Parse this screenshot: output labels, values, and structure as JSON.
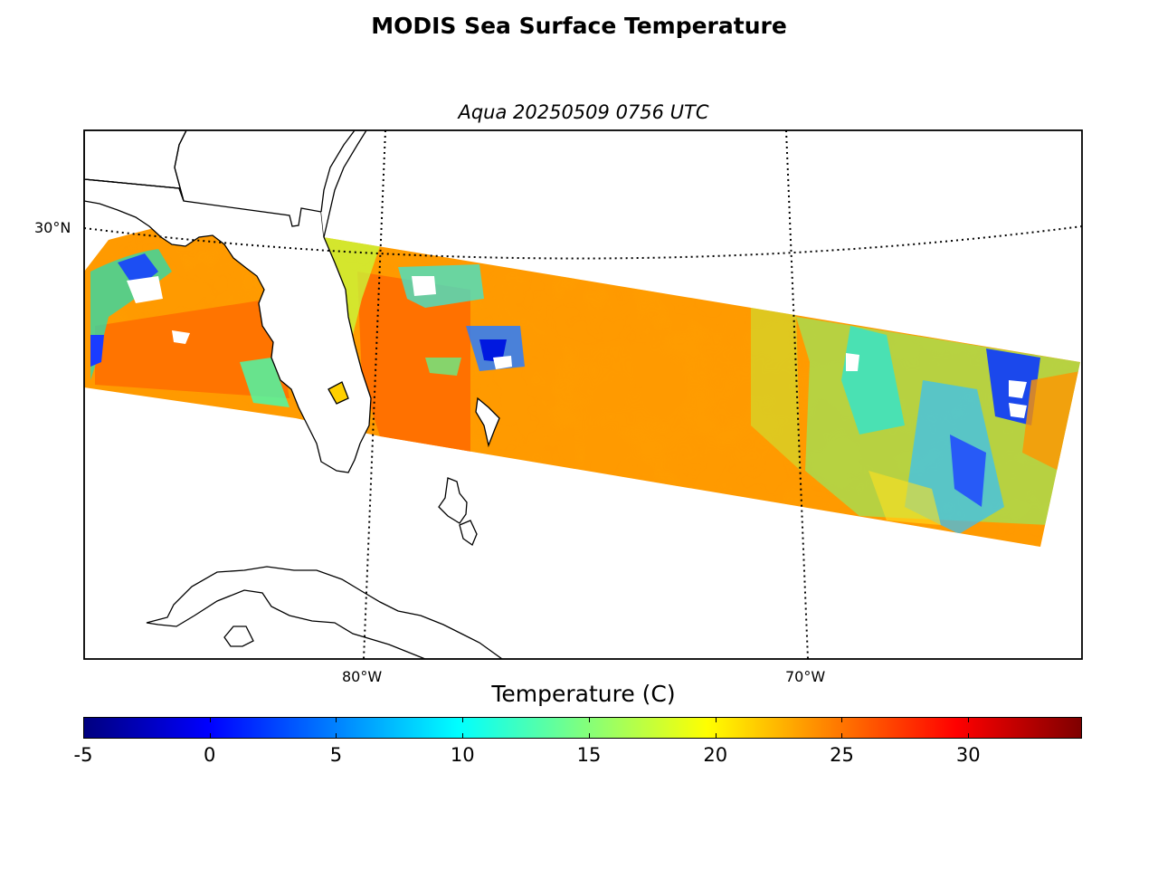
{
  "title": "MODIS Sea Surface Temperature",
  "subtitle": "Aqua 20250509 0756 UTC",
  "map": {
    "lat_labels": [
      "30°N"
    ],
    "lon_labels": [
      "80°W",
      "70°W"
    ]
  },
  "colorbar": {
    "label": "Temperature (C)",
    "min": -5,
    "max": 34.5,
    "ticks": [
      "-5",
      "0",
      "5",
      "10",
      "15",
      "20",
      "25",
      "30"
    ],
    "colormap": "jet",
    "colors": [
      "#00007f",
      "#0000ff",
      "#007fff",
      "#00ffff",
      "#7fff7f",
      "#ffff00",
      "#ff7f00",
      "#ff0000",
      "#7f0000"
    ]
  },
  "colors": {
    "warm_water": "#ff9800",
    "hot_water": "#ff5a00",
    "cool_water": "#2bffb0",
    "cold_cloud": "#0022ff",
    "land_fill": "#ffffff",
    "coastline": "#000000"
  }
}
